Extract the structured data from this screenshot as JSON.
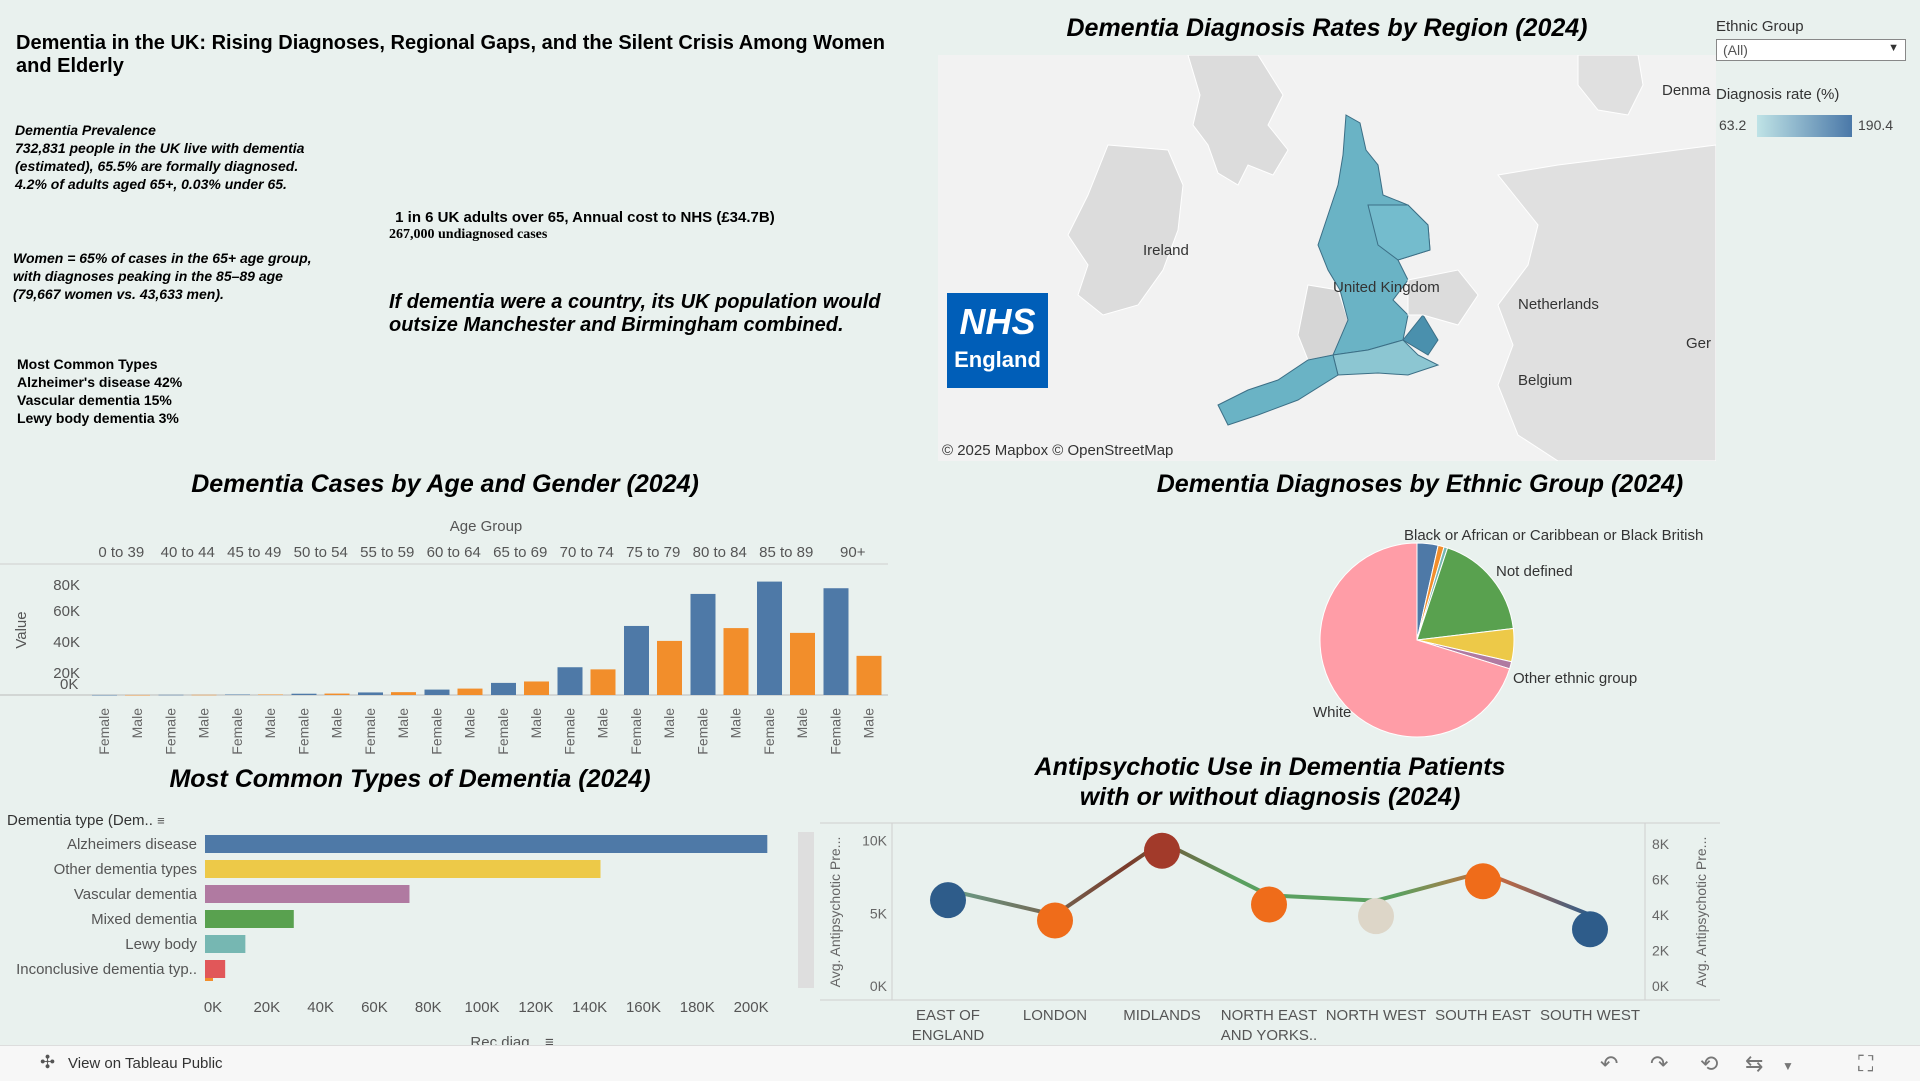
{
  "dashboard": {
    "title": "Dementia in the UK: Rising Diagnoses, Regional Gaps, and the Silent Crisis Among Women and Elderly"
  },
  "facts": {
    "prevalence": [
      "Dementia Prevalence",
      "732,831 people in the UK live with dementia",
      "(estimated), 65.5% are formally diagnosed.",
      "4.2% of adults aged 65+, 0.03% under 65."
    ],
    "women": [
      "Women = 65% of cases in the 65+ age group,",
      "with diagnoses peaking in the 85–89 age",
      " (79,667 women vs. 43,633 men)."
    ],
    "types": [
      "Most Common Types",
      "Alzheimer's disease 42%",
      "Vascular dementia 15%",
      "Lewy body dementia 3%"
    ],
    "cost_line": " 1 in 6 UK adults over 65, Annual cost to NHS (£34.7B)",
    "undiagnosed_line": "267,000 undiagnosed cases",
    "country_quote": [
      "If dementia were a country, its UK population would",
      "outsize Manchester and Birmingham combined."
    ]
  },
  "map": {
    "title": "Dementia Diagnosis Rates by Region (2024)",
    "labels": [
      "Ireland",
      "United Kingdom",
      "Netherlands",
      "Belgium",
      "Denma",
      "Ger"
    ],
    "attribution": "© 2025 Mapbox  © OpenStreetMap",
    "logo": {
      "line1": "NHS",
      "line2": "England"
    },
    "filter": {
      "label": "Ethnic Group",
      "value": "(All)"
    },
    "legend": {
      "title": "Diagnosis rate (%)",
      "min": "63.2",
      "max": "190.4"
    },
    "colors": {
      "low": "#bfe3e6",
      "high": "#4a78a8",
      "land": "#dedede",
      "sea": "#f2f2f2"
    }
  },
  "age_chart": {
    "title": "Dementia Cases by Age and Gender (2024)",
    "header": "Age Group",
    "ylabel": "Value",
    "yticks": [
      "80K",
      "60K",
      "40K",
      "20K",
      "0K"
    ],
    "colors": {
      "Female": "#4e79a7",
      "Male": "#f28e2b"
    }
  },
  "types_chart": {
    "title": "Most Common Types of Dementia (2024)",
    "row_header": "Dementia type (Dem..",
    "xlabel": "Rec diag",
    "xticks": [
      "0K",
      "20K",
      "40K",
      "60K",
      "80K",
      "100K",
      "120K",
      "140K",
      "160K",
      "180K",
      "200K"
    ]
  },
  "ethnic_chart": {
    "title": "Dementia Diagnoses by Ethnic Group (2024)",
    "labels": [
      "Black or African or Caribbean or Black British",
      "Not defined",
      "Other ethnic group",
      "White"
    ]
  },
  "antipsychotic_chart": {
    "title_line1": "Antipsychotic Use in Dementia Patients",
    "title_line2": "with or without diagnosis (2024)",
    "ylabel_left": "Avg. Antipsychotic Pre...",
    "ylabel_right": "Avg. Antipsychotic Pre...",
    "yticks_left": [
      "10K",
      "5K",
      "0K"
    ],
    "yticks_right": [
      "8K",
      "6K",
      "4K",
      "2K",
      "0K"
    ]
  },
  "toolbar": {
    "view_label": "View on Tableau Public"
  },
  "chart_data": [
    {
      "type": "bar",
      "title": "Dementia Cases by Age and Gender (2024)",
      "xlabel": "Age Group",
      "ylabel": "Value",
      "ylim": [
        0,
        85000
      ],
      "categories": [
        "0 to 39",
        "40 to 44",
        "45 to 49",
        "50 to 54",
        "55 to 59",
        "60 to 64",
        "65 to 69",
        "70 to 74",
        "75 to 79",
        "80 to 84",
        "85 to 89",
        "90+"
      ],
      "series": [
        {
          "name": "Female",
          "values": [
            50,
            150,
            350,
            900,
            1800,
            3800,
            8500,
            19500,
            48500,
            71000,
            79667,
            75000
          ]
        },
        {
          "name": "Male",
          "values": [
            50,
            150,
            350,
            1000,
            2000,
            4500,
            9500,
            18000,
            38000,
            47000,
            43633,
            27500
          ]
        }
      ],
      "grid": false
    },
    {
      "type": "bar",
      "orientation": "horizontal",
      "title": "Most Common Types of Dementia (2024)",
      "xlabel": "Rec diag",
      "ylabel": "Dementia type (Dem..",
      "xlim": [
        0,
        210000
      ],
      "categories": [
        "Alzheimers disease",
        "Other dementia types",
        "Vascular dementia",
        "Mixed dementia",
        "Lewy body",
        "Inconclusive dementia typ.."
      ],
      "values": [
        209000,
        147000,
        76000,
        33000,
        15000,
        7500
      ],
      "colors": [
        "#4e79a7",
        "#edc948",
        "#b07aa1",
        "#59a14f",
        "#76b7b2",
        "#e15759"
      ],
      "grid": false
    },
    {
      "type": "pie",
      "title": "Dementia Diagnoses by Ethnic Group (2024)",
      "slices": [
        {
          "label": "Black or African or Caribbean or Black British",
          "value": 3.5,
          "color": "#4e79a7"
        },
        {
          "label": "",
          "value": 1.0,
          "color": "#f28e2b"
        },
        {
          "label": "",
          "value": 0.6,
          "color": "#76b7b2"
        },
        {
          "label": "Not defined",
          "value": 18.0,
          "color": "#59a14f"
        },
        {
          "label": "",
          "value": 5.5,
          "color": "#edc948"
        },
        {
          "label": "Other ethnic group",
          "value": 1.2,
          "color": "#b07aa1"
        },
        {
          "label": "White",
          "value": 70.2,
          "color": "#ff9da7"
        }
      ]
    },
    {
      "type": "line",
      "title": "Antipsychotic Use in Dementia Patients with or without diagnosis (2024)",
      "categories": [
        "EAST OF ENGLAND",
        "LONDON",
        "MIDLANDS",
        "NORTH EAST AND YORKS..",
        "NORTH WEST",
        "SOUTH EAST",
        "SOUTH WEST"
      ],
      "category_display": [
        [
          "EAST OF",
          "ENGLAND"
        ],
        [
          "LONDON"
        ],
        [
          "MIDLANDS"
        ],
        [
          "NORTH EAST",
          "AND YORKS.."
        ],
        [
          "NORTH WEST"
        ],
        [
          "SOUTH EAST"
        ],
        [
          "SOUTH WEST"
        ]
      ],
      "ylim_left": [
        0,
        11000
      ],
      "ylim_right": [
        0,
        9000
      ],
      "line_series": {
        "axis": "right",
        "values": [
          5400,
          4000,
          8100,
          5100,
          4800,
          6400,
          4000
        ]
      },
      "circle_series": {
        "axis": "left",
        "values": [
          5900,
          4500,
          9300,
          5600,
          4800,
          7200,
          3900
        ],
        "colors": [
          "#2e5c8a",
          "#ef6c1a",
          "#a23a2a",
          "#ef6c1a",
          "#ddd6c8",
          "#ef6c1a",
          "#2e5c8a"
        ]
      },
      "grid": false
    }
  ]
}
